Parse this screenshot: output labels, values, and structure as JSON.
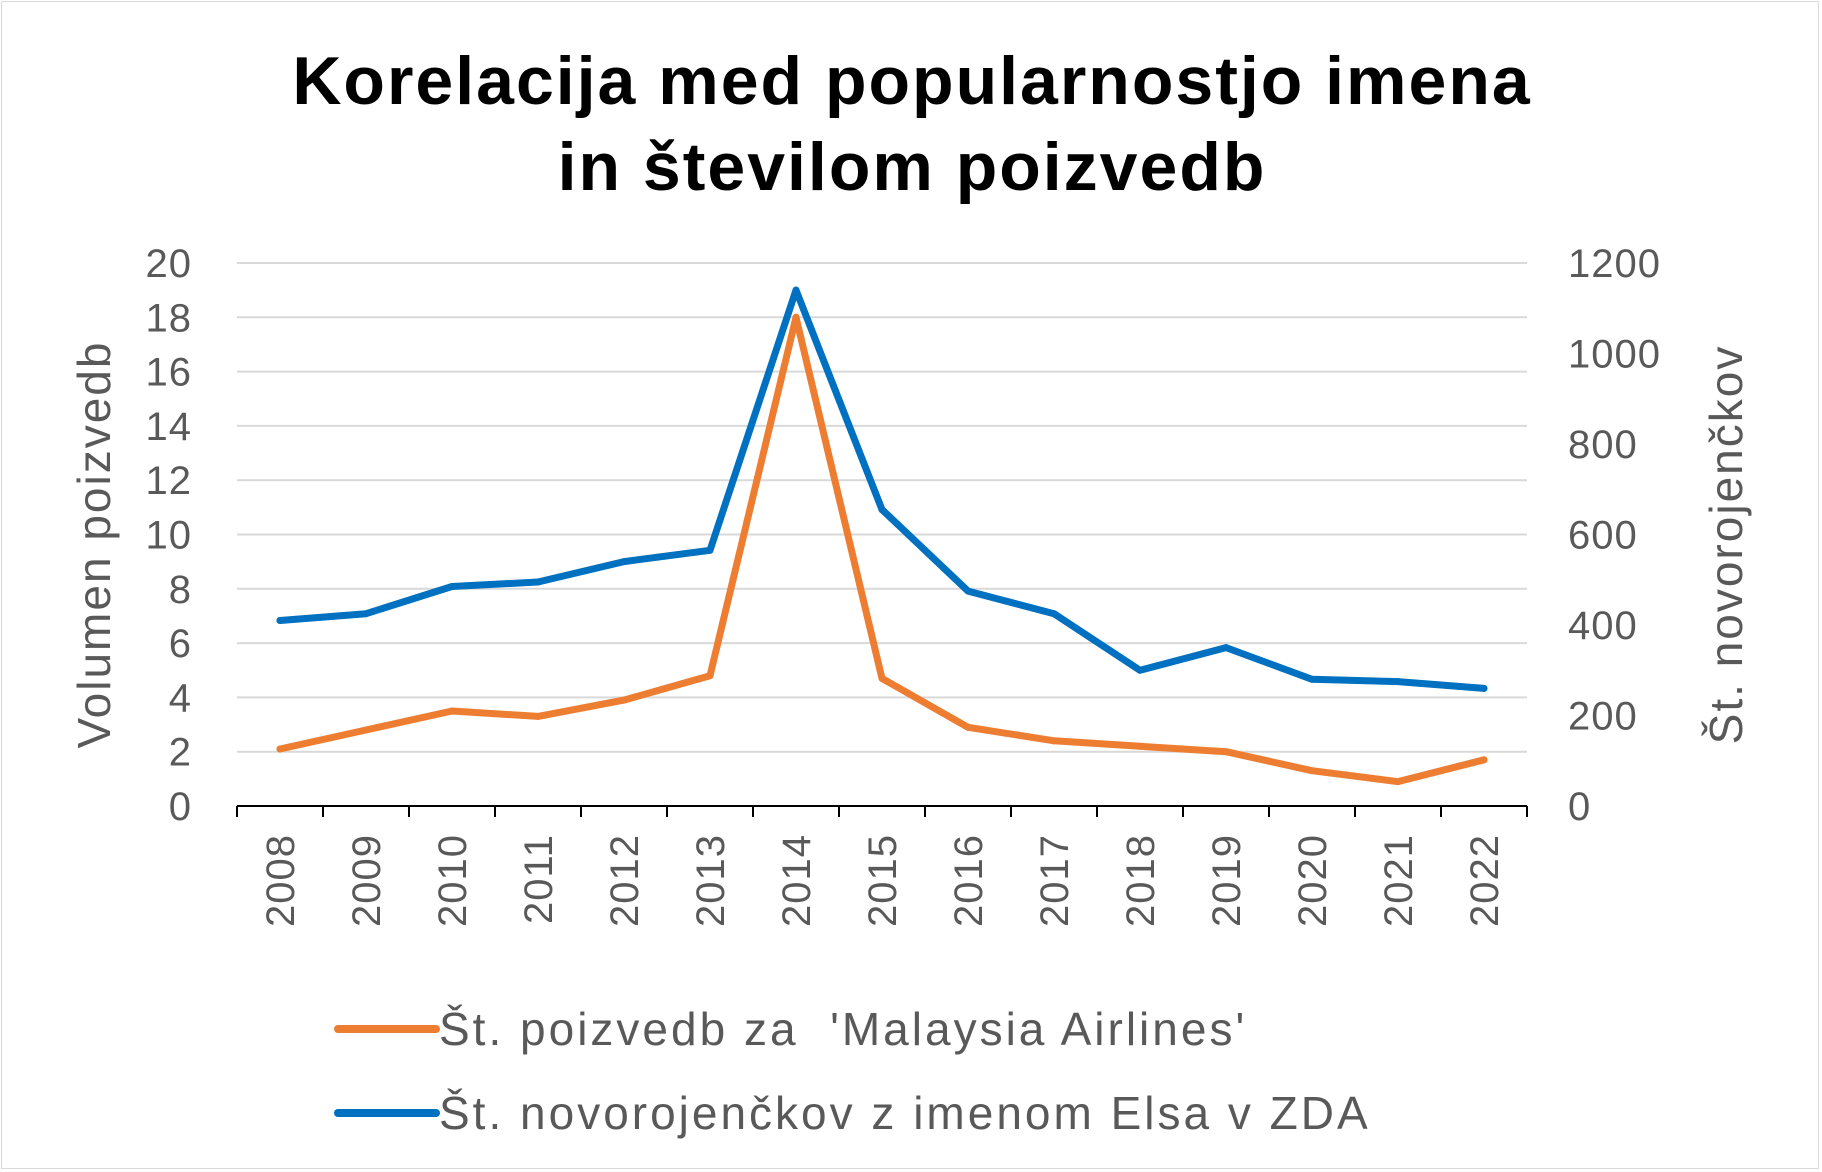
{
  "chart_data": {
    "type": "line",
    "title_lines": [
      "Korelacija med popularnostjo imena",
      "in številom poizvedb"
    ],
    "categories": [
      "2008",
      "2009",
      "2010",
      "2011",
      "2012",
      "2013",
      "2014",
      "2015",
      "2016",
      "2017",
      "2018",
      "2019",
      "2020",
      "2021",
      "2022"
    ],
    "y_left": {
      "label": "Volumen poizvedb",
      "min": 0,
      "max": 20,
      "ticks": [
        "0",
        "2",
        "4",
        "6",
        "8",
        "10",
        "12",
        "14",
        "16",
        "18",
        "20"
      ]
    },
    "y_right": {
      "label": "Št. novorojenčkov",
      "min": 0,
      "max": 1200,
      "ticks": [
        "0",
        "200",
        "400",
        "600",
        "800",
        "1000",
        "1200"
      ]
    },
    "grid": true,
    "legend_position": "bottom",
    "series": [
      {
        "name": "Št. poizvedb za  'Malaysia Airlines'",
        "axis": "left",
        "color": "#ED7D31",
        "values": [
          2.1,
          2.8,
          3.5,
          3.3,
          3.9,
          4.8,
          18,
          4.7,
          2.9,
          2.4,
          2.2,
          2.0,
          1.3,
          0.9,
          1.7
        ]
      },
      {
        "name": "Št. novorojenčkov z imenom Elsa v ZDA",
        "axis": "right",
        "color": "#0070C0",
        "values": [
          410,
          425,
          485,
          495,
          540,
          565,
          1140,
          655,
          475,
          425,
          300,
          350,
          280,
          275,
          260
        ]
      }
    ]
  }
}
